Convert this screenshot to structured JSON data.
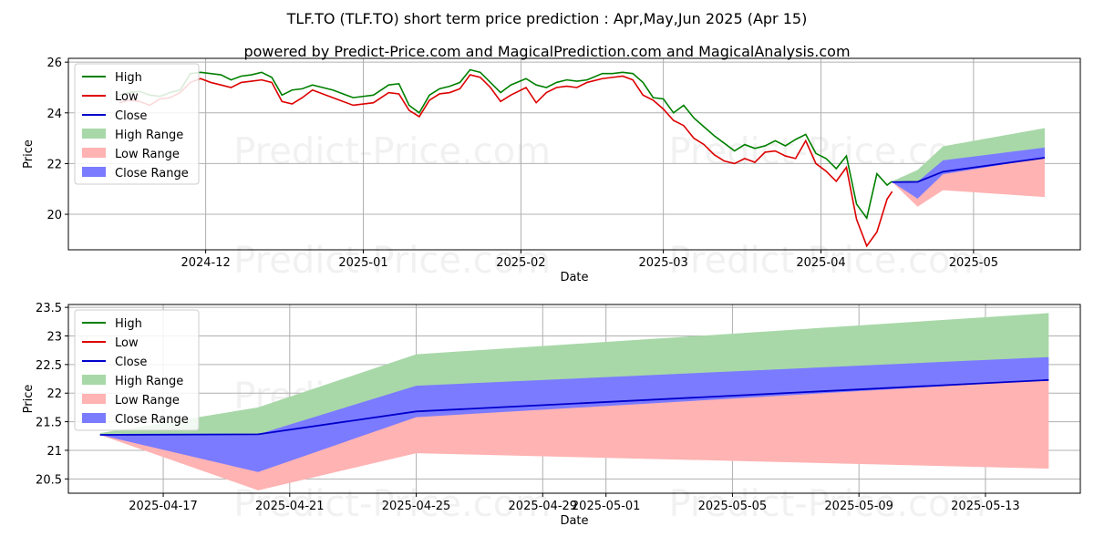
{
  "title": "TLF.TO (TLF.TO) short term price prediction : Apr,May,Jun 2025 (Apr 15)",
  "subtitle": "powered by Predict-Price.com and MagicalPrediction.com and MagicalAnalysis.com",
  "watermark": "Predict-Price.com",
  "colors": {
    "high": "#008000",
    "low": "#dd0000",
    "close": "#0000cc",
    "high_range": "#a8d8a8",
    "low_range": "#ffb3b3",
    "close_range": "#7b7bff",
    "grid": "#b0b0b0"
  },
  "chart_data": [
    {
      "type": "line",
      "xlabel": "Date",
      "ylabel": "Price",
      "xlim": [
        "2024-11-04",
        "2025-05-22"
      ],
      "ylim": [
        18.6,
        26.15
      ],
      "x_ticks": [
        "2024-12",
        "2025-01",
        "2025-02",
        "2025-03",
        "2025-04",
        "2025-05"
      ],
      "y_ticks": [
        20,
        22,
        24,
        26
      ],
      "legend": [
        "High",
        "Low",
        "Close",
        "High Range",
        "Low Range",
        "Close Range"
      ],
      "legend_position": "upper-left",
      "grid": true,
      "history": {
        "dates": [
          "2024-11-14",
          "2024-11-16",
          "2024-11-18",
          "2024-11-20",
          "2024-11-22",
          "2024-11-24",
          "2024-11-26",
          "2024-11-28",
          "2024-11-30",
          "2024-12-02",
          "2024-12-04",
          "2024-12-06",
          "2024-12-08",
          "2024-12-10",
          "2024-12-12",
          "2024-12-14",
          "2024-12-16",
          "2024-12-18",
          "2024-12-20",
          "2024-12-22",
          "2024-12-26",
          "2024-12-30",
          "2025-01-03",
          "2025-01-06",
          "2025-01-08",
          "2025-01-10",
          "2025-01-12",
          "2025-01-14",
          "2025-01-16",
          "2025-01-18",
          "2025-01-20",
          "2025-01-22",
          "2025-01-24",
          "2025-01-26",
          "2025-01-28",
          "2025-01-30",
          "2025-02-02",
          "2025-02-04",
          "2025-02-06",
          "2025-02-08",
          "2025-02-10",
          "2025-02-12",
          "2025-02-14",
          "2025-02-17",
          "2025-02-19",
          "2025-02-21",
          "2025-02-23",
          "2025-02-25",
          "2025-02-27",
          "2025-03-01",
          "2025-03-03",
          "2025-03-05",
          "2025-03-07",
          "2025-03-09",
          "2025-03-11",
          "2025-03-13",
          "2025-03-15",
          "2025-03-17",
          "2025-03-19",
          "2025-03-21",
          "2025-03-23",
          "2025-03-25",
          "2025-03-27",
          "2025-03-29",
          "2025-03-31",
          "2025-04-02",
          "2025-04-04",
          "2025-04-06",
          "2025-04-08",
          "2025-04-10",
          "2025-04-12",
          "2025-04-14",
          "2025-04-15"
        ],
        "high": [
          24.7,
          24.8,
          24.85,
          24.7,
          24.65,
          24.8,
          24.9,
          25.55,
          25.6,
          25.55,
          25.5,
          25.3,
          25.45,
          25.5,
          25.6,
          25.4,
          24.7,
          24.9,
          24.95,
          25.1,
          24.9,
          24.6,
          24.7,
          25.1,
          25.15,
          24.3,
          24.0,
          24.7,
          24.95,
          25.05,
          25.2,
          25.7,
          25.6,
          25.2,
          24.8,
          25.1,
          25.35,
          25.1,
          25.0,
          25.2,
          25.3,
          25.25,
          25.3,
          25.55,
          25.55,
          25.6,
          25.55,
          25.2,
          24.6,
          24.55,
          24.0,
          24.3,
          23.8,
          23.45,
          23.1,
          22.8,
          22.5,
          22.75,
          22.6,
          22.7,
          22.9,
          22.7,
          22.95,
          23.15,
          22.4,
          22.2,
          21.8,
          22.3,
          20.4,
          19.85,
          21.6,
          21.15,
          21.3
        ],
        "low": [
          24.4,
          24.5,
          24.45,
          24.3,
          24.55,
          24.6,
          24.8,
          25.2,
          25.35,
          25.2,
          25.1,
          25.0,
          25.2,
          25.25,
          25.3,
          25.2,
          24.45,
          24.35,
          24.6,
          24.9,
          24.6,
          24.3,
          24.4,
          24.8,
          24.75,
          24.1,
          23.85,
          24.5,
          24.75,
          24.8,
          24.95,
          25.5,
          25.4,
          25.0,
          24.45,
          24.7,
          25.0,
          24.4,
          24.8,
          25.0,
          25.05,
          25.0,
          25.2,
          25.35,
          25.4,
          25.45,
          25.3,
          24.7,
          24.5,
          24.15,
          23.7,
          23.5,
          23.0,
          22.75,
          22.35,
          22.1,
          22.0,
          22.2,
          22.05,
          22.45,
          22.5,
          22.3,
          22.2,
          22.9,
          22.0,
          21.7,
          21.3,
          21.85,
          19.8,
          18.75,
          19.3,
          20.6,
          20.9
        ]
      },
      "forecast": {
        "dates": [
          "2025-04-15",
          "2025-04-20",
          "2025-04-25",
          "2025-05-15"
        ],
        "close": [
          21.27,
          21.28,
          21.68,
          22.23
        ],
        "high_upper": [
          21.3,
          21.75,
          22.68,
          23.4
        ],
        "close_lower": [
          21.27,
          20.62,
          21.58,
          22.23
        ],
        "close_upper": [
          21.27,
          21.28,
          22.13,
          22.63
        ],
        "low_lower": [
          21.27,
          20.3,
          20.95,
          20.68
        ]
      }
    },
    {
      "type": "line",
      "xlabel": "Date",
      "ylabel": "Price",
      "xlim": [
        "2025-04-14",
        "2025-05-16"
      ],
      "ylim": [
        20.25,
        23.55
      ],
      "x_ticks": [
        "2025-04-17",
        "2025-04-21",
        "2025-04-25",
        "2025-04-29",
        "2025-05-01",
        "2025-05-05",
        "2025-05-09",
        "2025-05-13"
      ],
      "y_ticks": [
        20.5,
        21.0,
        21.5,
        22.0,
        22.5,
        23.0,
        23.5
      ],
      "legend": [
        "High",
        "Low",
        "Close",
        "High Range",
        "Low Range",
        "Close Range"
      ],
      "legend_position": "upper-left",
      "grid": true,
      "forecast": {
        "dates": [
          "2025-04-15",
          "2025-04-20",
          "2025-04-25",
          "2025-05-15"
        ],
        "close": [
          21.27,
          21.28,
          21.68,
          22.23
        ],
        "high_upper": [
          21.3,
          21.75,
          22.68,
          23.4
        ],
        "close_lower": [
          21.27,
          20.62,
          21.58,
          22.23
        ],
        "close_upper": [
          21.27,
          21.28,
          22.13,
          22.63
        ],
        "low_lower": [
          21.27,
          20.3,
          20.95,
          20.68
        ]
      }
    }
  ]
}
